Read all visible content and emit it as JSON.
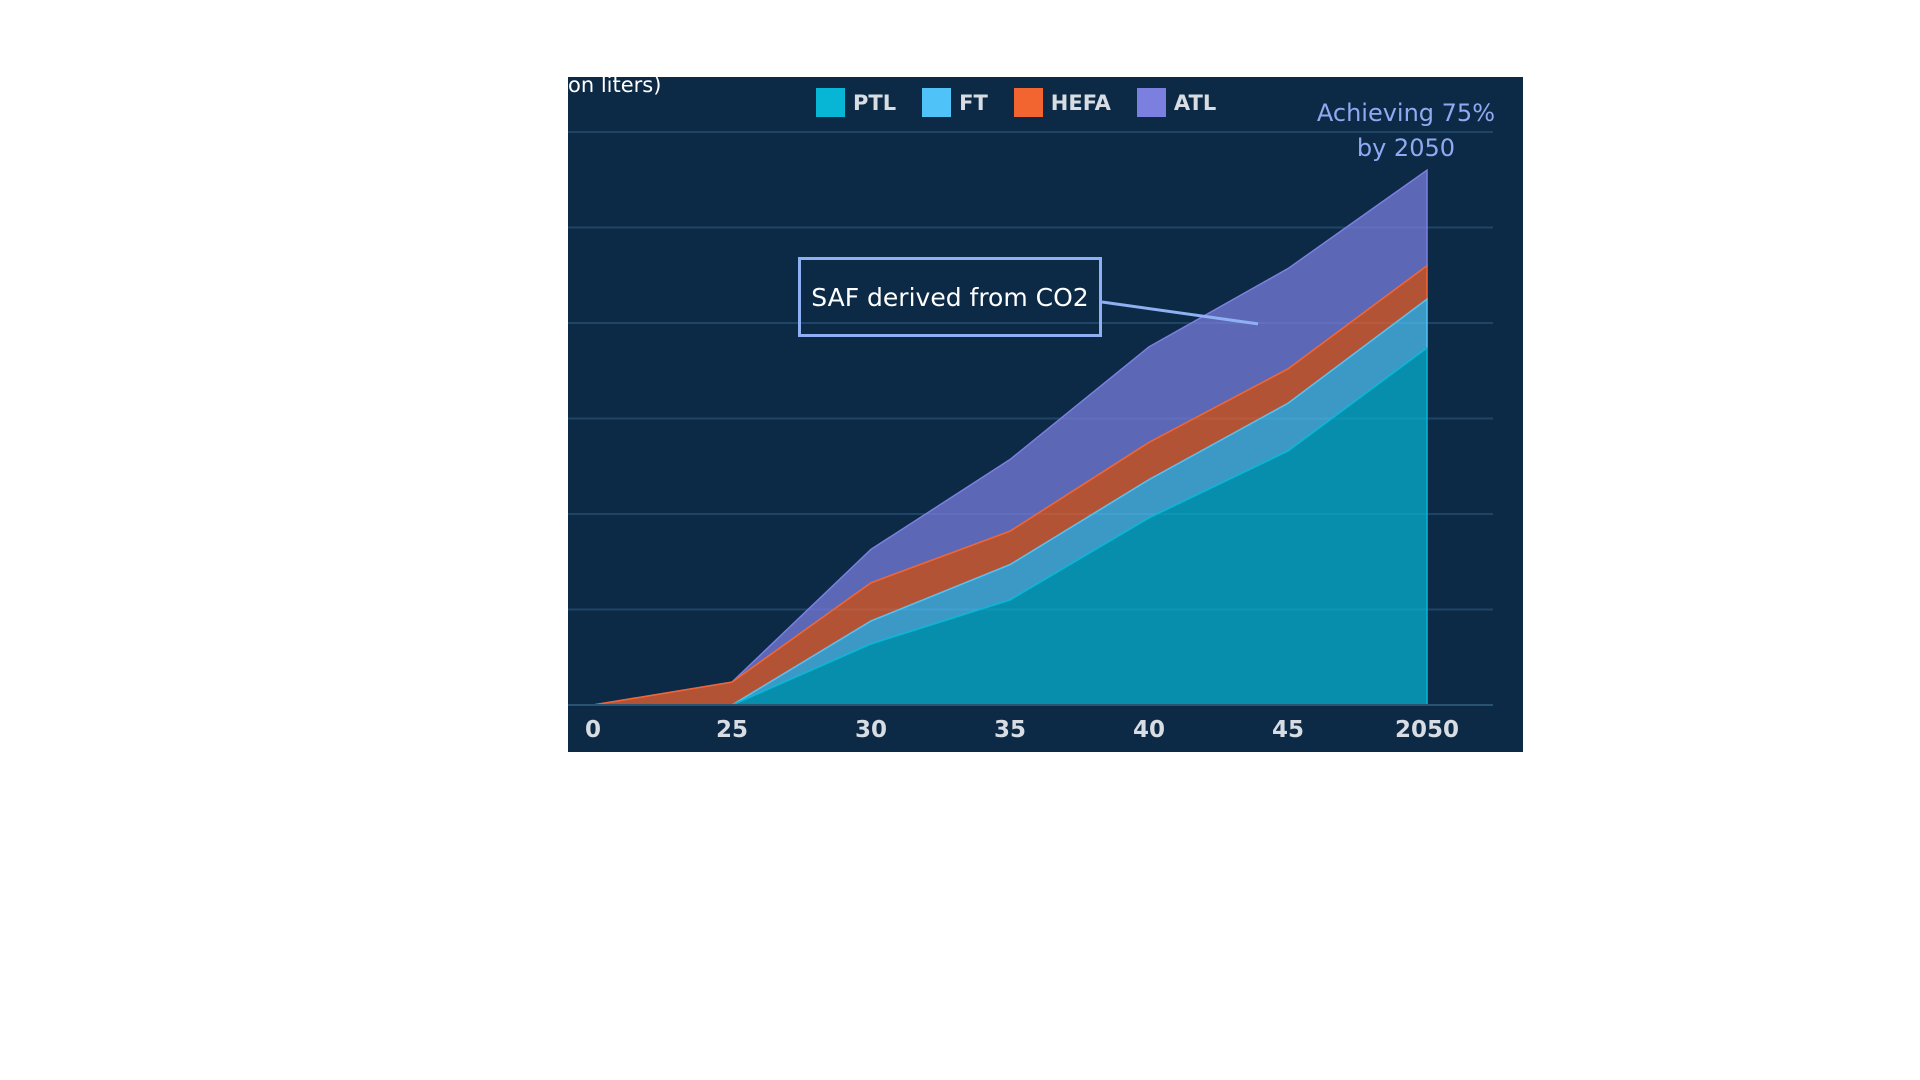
{
  "chart_data": {
    "type": "area",
    "stacked": true,
    "unit_label": "on liters)",
    "categories": [
      "0",
      "25",
      "30",
      "35",
      "40",
      "45",
      "2050"
    ],
    "series": [
      {
        "name": "PTL",
        "color": "#06b6d4",
        "values": [
          0,
          0,
          6.4,
          11.0,
          19.6,
          26.6,
          37.4
        ]
      },
      {
        "name": "FT",
        "color": "#4fc3f7",
        "values": [
          0,
          0,
          2.4,
          3.7,
          4.0,
          5.0,
          5.1
        ]
      },
      {
        "name": "HEFA",
        "color": "#f26430",
        "values": [
          0,
          2.4,
          4.0,
          3.5,
          3.9,
          3.6,
          3.5
        ]
      },
      {
        "name": "ATL",
        "color": "#7b7fe0",
        "values": [
          0,
          0,
          3.5,
          7.5,
          10.0,
          10.5,
          10.0
        ]
      }
    ],
    "ylim": [
      0,
      60
    ],
    "grid": true,
    "legend_position": "top-center",
    "callout": "Achieving 75%\nby 2050",
    "annotation": "SAF derived from CO2",
    "annotation_points_to": {
      "category": "45",
      "value": 42
    }
  }
}
